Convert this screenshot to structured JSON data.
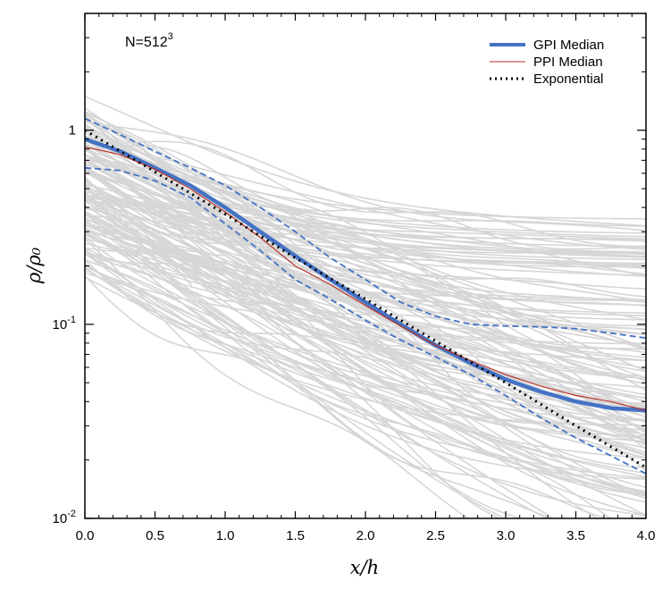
{
  "chart_data": {
    "type": "line",
    "title": "",
    "annotation": "N=512",
    "annotation_superscript": "3",
    "xlabel": "x/h",
    "ylabel": "ρ/ρ₀",
    "xscale": "linear",
    "yscale": "log",
    "xlim": [
      0.0,
      4.0
    ],
    "ylim": [
      0.01,
      4.0
    ],
    "xticks": [
      0.0,
      0.5,
      1.0,
      1.5,
      2.0,
      2.5,
      3.0,
      3.5,
      4.0
    ],
    "xtick_labels": [
      "0.0",
      "0.5",
      "1.0",
      "1.5",
      "2.0",
      "2.5",
      "3.0",
      "3.5",
      "4.0"
    ],
    "yticks": [
      {
        "value": 1,
        "base": "1",
        "exp": ""
      },
      {
        "value": 0.1,
        "base": "10",
        "exp": "-1"
      },
      {
        "value": 0.01,
        "base": "10",
        "exp": "-2"
      }
    ],
    "legend_location": "top-right",
    "colors": {
      "gpi": "#4472c4",
      "ppi": "#b83228",
      "exponential": "#000000",
      "background_profiles": "#d6d6d6"
    },
    "series": [
      {
        "name": "GPI Median",
        "style": "solid-thick",
        "x": [
          0.0,
          0.25,
          0.5,
          0.75,
          1.0,
          1.25,
          1.5,
          1.75,
          2.0,
          2.25,
          2.5,
          2.75,
          3.0,
          3.25,
          3.5,
          3.75,
          4.0
        ],
        "y": [
          0.9,
          0.78,
          0.64,
          0.52,
          0.4,
          0.3,
          0.225,
          0.17,
          0.13,
          0.1,
          0.078,
          0.063,
          0.052,
          0.045,
          0.04,
          0.037,
          0.036
        ]
      },
      {
        "name": "PPI Median",
        "style": "solid-thin",
        "x": [
          0.0,
          0.25,
          0.5,
          0.75,
          1.0,
          1.25,
          1.5,
          1.75,
          2.0,
          2.25,
          2.5,
          2.75,
          3.0,
          3.25,
          3.5,
          3.75,
          4.0
        ],
        "y": [
          0.82,
          0.75,
          0.63,
          0.5,
          0.38,
          0.28,
          0.2,
          0.16,
          0.125,
          0.098,
          0.078,
          0.065,
          0.055,
          0.048,
          0.043,
          0.04,
          0.036
        ]
      },
      {
        "name": "Exponential",
        "style": "dotted",
        "x": [
          0.0,
          0.5,
          1.0,
          1.5,
          2.0,
          2.5,
          3.0,
          3.5,
          4.0
        ],
        "y": [
          1.0,
          0.61,
          0.37,
          0.22,
          0.135,
          0.082,
          0.05,
          0.03,
          0.0183
        ]
      },
      {
        "name": "GPI Upper Bound",
        "style": "dashed",
        "in_legend": false,
        "x": [
          0.0,
          0.25,
          0.5,
          0.75,
          1.0,
          1.25,
          1.5,
          1.75,
          2.0,
          2.25,
          2.5,
          2.75,
          3.0,
          3.25,
          3.5,
          3.75,
          4.0
        ],
        "y": [
          1.15,
          0.95,
          0.78,
          0.64,
          0.52,
          0.4,
          0.3,
          0.22,
          0.17,
          0.13,
          0.11,
          0.1,
          0.098,
          0.097,
          0.095,
          0.09,
          0.085
        ]
      },
      {
        "name": "GPI Lower Bound",
        "style": "dashed",
        "in_legend": false,
        "x": [
          0.0,
          0.25,
          0.5,
          0.75,
          1.0,
          1.25,
          1.5,
          1.75,
          2.0,
          2.25,
          2.5,
          2.75,
          3.0,
          3.25,
          3.5,
          3.75,
          4.0
        ],
        "y": [
          0.64,
          0.62,
          0.55,
          0.45,
          0.33,
          0.24,
          0.17,
          0.135,
          0.105,
          0.083,
          0.068,
          0.055,
          0.043,
          0.033,
          0.026,
          0.021,
          0.017
        ]
      }
    ]
  }
}
